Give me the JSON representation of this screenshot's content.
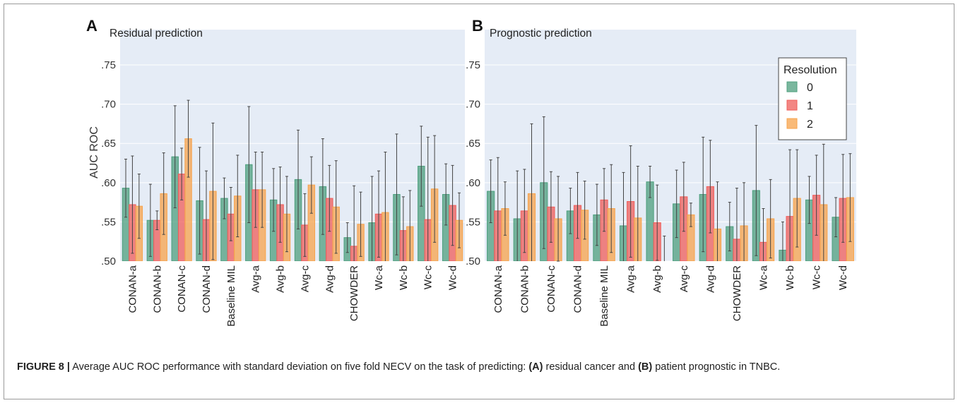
{
  "panels": [
    {
      "letter": "A",
      "title": "Residual prediction",
      "ylabel": "AUC ROC"
    },
    {
      "letter": "B",
      "title": "Prognostic prediction",
      "ylabel": ""
    }
  ],
  "legend": {
    "title": "Resolution",
    "labels": [
      "0",
      "1",
      "2"
    ]
  },
  "colors": {
    "series_0": "#4d9f7d",
    "series_1": "#ef5d5a",
    "series_2": "#f7a34b",
    "plot_background": "#e5ecf6"
  },
  "caption": {
    "figure_label": "FIGURE 8 |",
    "text_1": " Average AUC ROC performance with standard deviation on five fold NECV on the task of predicting: ",
    "label_a": "(A)",
    "text_2": " residual cancer and ",
    "label_b": "(B)",
    "text_3": " patient prognostic in TNBC."
  },
  "chart_data": [
    {
      "type": "bar",
      "title": "Residual prediction",
      "ylabel": "AUC ROC",
      "ylim": [
        0.5,
        0.795
      ],
      "yticks": [
        0.5,
        0.55,
        0.6,
        0.65,
        0.7,
        0.75
      ],
      "ytick_labels": [
        ".50",
        ".55",
        ".60",
        ".65",
        ".70",
        ".75"
      ],
      "grid": true,
      "categories": [
        "CONAN-a",
        "CONAN-b",
        "CONAN-c",
        "CONAN-d",
        "Baseline MIL",
        "Avg-a",
        "Avg-b",
        "Avg-c",
        "Avg-d",
        "CHOWDER",
        "Wc-a",
        "Wc-b",
        "Wc-c",
        "Wc-d"
      ],
      "series": [
        {
          "name": "0",
          "values": [
            0.593,
            0.552,
            0.633,
            0.577,
            0.58,
            0.623,
            0.578,
            0.604,
            0.595,
            0.53,
            0.549,
            0.585,
            0.621,
            0.585
          ],
          "errors": [
            0.037,
            0.046,
            0.065,
            0.068,
            0.026,
            0.074,
            0.04,
            0.063,
            0.061,
            0.019,
            0.059,
            0.077,
            0.051,
            0.039
          ]
        },
        {
          "name": "1",
          "values": [
            0.572,
            0.552,
            0.611,
            0.553,
            0.56,
            0.591,
            0.572,
            0.546,
            0.58,
            0.519,
            0.56,
            0.539,
            0.553,
            0.571
          ],
          "errors": [
            0.062,
            0.012,
            0.033,
            0.062,
            0.034,
            0.048,
            0.048,
            0.04,
            0.042,
            0.077,
            0.055,
            0.043,
            0.105,
            0.051
          ]
        },
        {
          "name": "2",
          "values": [
            0.57,
            0.586,
            0.656,
            0.589,
            0.583,
            0.591,
            0.56,
            0.597,
            0.569,
            0.547,
            0.562,
            0.544,
            0.592,
            0.552
          ],
          "errors": [
            0.041,
            0.052,
            0.049,
            0.087,
            0.052,
            0.048,
            0.048,
            0.036,
            0.059,
            0.041,
            0.077,
            0.046,
            0.068,
            0.035
          ]
        }
      ],
      "legend": "none"
    },
    {
      "type": "bar",
      "title": "Prognostic prediction",
      "ylabel": "",
      "ylim": [
        0.5,
        0.795
      ],
      "yticks": [
        0.5,
        0.55,
        0.6,
        0.65,
        0.7,
        0.75
      ],
      "ytick_labels": [
        ".50",
        ".55",
        ".60",
        ".65",
        ".70",
        ".75"
      ],
      "grid": true,
      "categories": [
        "CONAN-a",
        "CONAN-b",
        "CONAN-c",
        "CONAN-d",
        "Baseline MIL",
        "Avg-a",
        "Avg-b",
        "Avg-c",
        "Avg-d",
        "CHOWDER",
        "Wc-a",
        "Wc-b",
        "Wc-c",
        "Wc-d"
      ],
      "series": [
        {
          "name": "0",
          "values": [
            0.589,
            0.554,
            0.6,
            0.564,
            0.559,
            0.545,
            0.601,
            0.573,
            0.585,
            0.544,
            0.59,
            0.514,
            0.578,
            0.556
          ],
          "errors": [
            0.04,
            0.061,
            0.084,
            0.029,
            0.039,
            0.068,
            0.02,
            0.043,
            0.073,
            0.031,
            0.083,
            0.036,
            0.03,
            0.025
          ]
        },
        {
          "name": "1",
          "values": [
            0.564,
            0.564,
            0.569,
            0.571,
            0.578,
            0.576,
            0.549,
            0.582,
            0.595,
            0.528,
            0.524,
            0.557,
            0.584,
            0.58
          ],
          "errors": [
            0.068,
            0.053,
            0.045,
            0.042,
            0.04,
            0.071,
            0.048,
            0.044,
            0.059,
            0.065,
            0.043,
            0.085,
            0.051,
            0.056
          ]
        },
        {
          "name": "2",
          "values": [
            0.567,
            0.586,
            0.554,
            0.565,
            0.567,
            0.555,
            0.49,
            0.559,
            0.541,
            0.545,
            0.554,
            0.58,
            0.572,
            0.581
          ],
          "errors": [
            0.034,
            0.089,
            0.054,
            0.037,
            0.056,
            0.066,
            0.042,
            0.015,
            0.06,
            0.055,
            0.05,
            0.062,
            0.077,
            0.056
          ]
        }
      ],
      "legend": "top-right"
    }
  ]
}
